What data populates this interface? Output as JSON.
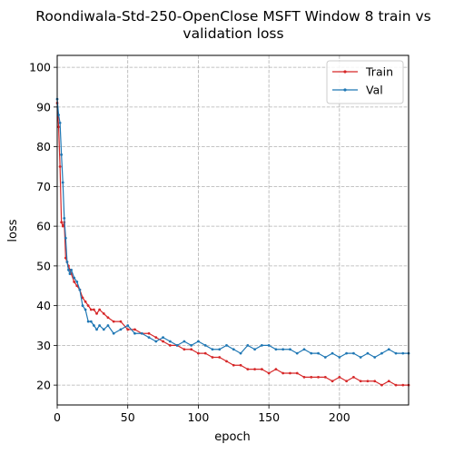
{
  "chart_data": {
    "type": "line",
    "title_line1": "Roondiwala-Std-250-OpenClose MSFT Window 8 train vs",
    "title_line2": "validation loss",
    "xlabel": "epoch",
    "ylabel": "loss",
    "xlim": [
      0,
      249
    ],
    "ylim": [
      15,
      103
    ],
    "xticks": [
      0,
      50,
      100,
      150,
      200
    ],
    "yticks": [
      20,
      30,
      40,
      50,
      60,
      70,
      80,
      90,
      100
    ],
    "grid": true,
    "legend_position": "top-right",
    "series": [
      {
        "name": "Train",
        "color": "#d62728",
        "x": [
          0,
          1,
          2,
          3,
          4,
          5,
          6,
          7,
          8,
          9,
          10,
          12,
          14,
          16,
          18,
          20,
          22,
          24,
          26,
          28,
          30,
          33,
          36,
          40,
          45,
          50,
          55,
          60,
          65,
          70,
          75,
          80,
          85,
          90,
          95,
          100,
          105,
          110,
          115,
          120,
          125,
          130,
          135,
          140,
          145,
          150,
          155,
          160,
          165,
          170,
          175,
          180,
          185,
          190,
          195,
          200,
          205,
          210,
          215,
          220,
          225,
          230,
          235,
          240,
          245,
          249
        ],
        "values": [
          91,
          85,
          75,
          61,
          60,
          61,
          52,
          51,
          50,
          49,
          48,
          46,
          45,
          44,
          42,
          41,
          40,
          39,
          39,
          38,
          39,
          38,
          37,
          36,
          36,
          34,
          34,
          33,
          33,
          32,
          31,
          30,
          30,
          29,
          29,
          28,
          28,
          27,
          27,
          26,
          25,
          25,
          24,
          24,
          24,
          23,
          24,
          23,
          23,
          23,
          22,
          22,
          22,
          22,
          21,
          22,
          21,
          22,
          21,
          21,
          21,
          20,
          21,
          20,
          20,
          20
        ]
      },
      {
        "name": "Val",
        "color": "#1f77b4",
        "x": [
          0,
          1,
          2,
          3,
          4,
          5,
          6,
          7,
          8,
          9,
          10,
          12,
          14,
          16,
          18,
          20,
          22,
          24,
          26,
          28,
          30,
          33,
          36,
          40,
          45,
          50,
          55,
          60,
          65,
          70,
          75,
          80,
          85,
          90,
          95,
          100,
          105,
          110,
          115,
          120,
          125,
          130,
          135,
          140,
          145,
          150,
          155,
          160,
          165,
          170,
          175,
          180,
          185,
          190,
          195,
          200,
          205,
          210,
          215,
          220,
          225,
          230,
          235,
          240,
          245,
          249
        ],
        "values": [
          92,
          88,
          86,
          78,
          71,
          62,
          57,
          51,
          49,
          48,
          49,
          47,
          46,
          44,
          40,
          39,
          36,
          36,
          35,
          34,
          35,
          34,
          35,
          33,
          34,
          35,
          33,
          33,
          32,
          31,
          32,
          31,
          30,
          31,
          30,
          31,
          30,
          29,
          29,
          30,
          29,
          28,
          30,
          29,
          30,
          30,
          29,
          29,
          29,
          28,
          29,
          28,
          28,
          27,
          28,
          27,
          28,
          28,
          27,
          28,
          27,
          28,
          29,
          28,
          28,
          28
        ]
      }
    ]
  }
}
